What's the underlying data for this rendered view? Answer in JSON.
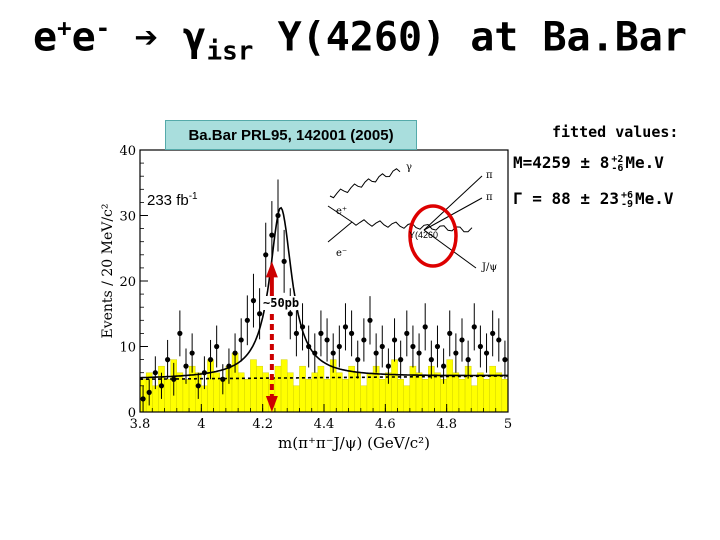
{
  "slide": {
    "title_prefix": "e",
    "title_sup1": "+",
    "title_e2": "e",
    "title_sup2": "-",
    "title_arrow": "➔",
    "title_gamma": "γ",
    "title_isr": "isr",
    "title_rest": "Y(4260) at Ba.Bar",
    "reference": "Ba.Bar PRL95, 142001 (2005)",
    "fit_header": "fitted values:",
    "mass_text": "M=4259 ± 8",
    "mass_sup": "+2",
    "mass_sub": "-6",
    "mass_unit": "Me.V",
    "width_text": "Γ = 88 ± 23",
    "width_sup": "+6",
    "width_sub": "-9",
    "width_unit": "Me.V",
    "luminosity": "233 fb",
    "luminosity_sup": "-1",
    "xsec_label": "~50pb"
  },
  "diagram": {
    "gamma": "γ",
    "pi1": "π",
    "pi2": "π",
    "eplus": "e⁺",
    "eminus": "e⁻",
    "y_label": "Y(4260",
    "jpsi": "J/ψ"
  },
  "colors": {
    "fill": "#ffff00",
    "box": "#a9dedd",
    "arrow": "#cc0000",
    "circle": "#dd0000"
  },
  "chart_data": {
    "type": "bar",
    "xlabel": "m(π⁺π⁻J/ψ) (GeV/c²)",
    "ylabel": "Events / 20 MeV/c²",
    "xlim": [
      3.8,
      5.0
    ],
    "ylim": [
      0,
      40
    ],
    "x_ticks": [
      3.8,
      4,
      4.2,
      4.4,
      4.6,
      4.8,
      5
    ],
    "x_tick_labels": [
      "3.8",
      "4",
      "4.2",
      "4.4",
      "4.6",
      "4.8",
      "5"
    ],
    "y_ticks": [
      0,
      10,
      20,
      30,
      40
    ],
    "y_tick_labels": [
      "0",
      "10",
      "20",
      "30",
      "40"
    ],
    "sideband_bins": {
      "x": [
        3.8,
        3.82,
        3.84,
        3.86,
        3.88,
        3.9,
        3.92,
        3.94,
        3.96,
        3.98,
        4.0,
        4.02,
        4.04,
        4.06,
        4.08,
        4.1,
        4.12,
        4.14,
        4.16,
        4.18,
        4.2,
        4.22,
        4.24,
        4.26,
        4.28,
        4.3,
        4.32,
        4.34,
        4.36,
        4.38,
        4.4,
        4.42,
        4.44,
        4.46,
        4.48,
        4.5,
        4.52,
        4.54,
        4.56,
        4.58,
        4.6,
        4.62,
        4.64,
        4.66,
        4.68,
        4.7,
        4.72,
        4.74,
        4.76,
        4.78,
        4.8,
        4.82,
        4.84,
        4.86,
        4.88,
        4.9,
        4.92,
        4.94,
        4.96,
        4.98
      ],
      "values": [
        5,
        6,
        4,
        7,
        5,
        8,
        6,
        5,
        7,
        6,
        4,
        8,
        6,
        5,
        7,
        9,
        6,
        5,
        8,
        7,
        6,
        5,
        7,
        8,
        6,
        4,
        7,
        5,
        6,
        7,
        5,
        8,
        6,
        5,
        7,
        6,
        4,
        6,
        7,
        5,
        6,
        8,
        5,
        4,
        7,
        6,
        5,
        7,
        6,
        5,
        8,
        6,
        5,
        7,
        4,
        6,
        5,
        7,
        6,
        5
      ]
    },
    "series": [
      {
        "name": "data",
        "x": [
          3.81,
          3.83,
          3.85,
          3.87,
          3.89,
          3.91,
          3.93,
          3.95,
          3.97,
          3.99,
          4.01,
          4.03,
          4.05,
          4.07,
          4.09,
          4.11,
          4.13,
          4.15,
          4.17,
          4.19,
          4.21,
          4.23,
          4.25,
          4.27,
          4.29,
          4.31,
          4.33,
          4.35,
          4.37,
          4.39,
          4.41,
          4.43,
          4.45,
          4.47,
          4.49,
          4.51,
          4.53,
          4.55,
          4.57,
          4.59,
          4.61,
          4.63,
          4.65,
          4.67,
          4.69,
          4.71,
          4.73,
          4.75,
          4.77,
          4.79,
          4.81,
          4.83,
          4.85,
          4.87,
          4.89,
          4.91,
          4.93,
          4.95,
          4.97,
          4.99
        ],
        "y": [
          2,
          3,
          6,
          4,
          8,
          5,
          12,
          7,
          9,
          4,
          6,
          8,
          10,
          5,
          7,
          9,
          11,
          14,
          17,
          15,
          24,
          27,
          30,
          23,
          15,
          12,
          13,
          10,
          9,
          12,
          11,
          9,
          10,
          13,
          12,
          8,
          11,
          14,
          9,
          10,
          7,
          11,
          8,
          12,
          10,
          9,
          13,
          8,
          10,
          7,
          12,
          9,
          11,
          8,
          13,
          10,
          9,
          12,
          11,
          8
        ],
        "err": [
          2,
          2,
          2.5,
          2,
          3,
          2.5,
          3.5,
          2.7,
          3,
          2,
          2.5,
          3,
          3.2,
          2.3,
          2.7,
          3,
          3.3,
          3.8,
          4.1,
          3.9,
          4.9,
          5.2,
          5.5,
          4.8,
          3.9,
          3.5,
          3.6,
          3.2,
          3,
          3.5,
          3.3,
          3,
          3.2,
          3.6,
          3.5,
          2.9,
          3.3,
          3.7,
          3,
          3.2,
          2.7,
          3.3,
          2.9,
          3.5,
          3.2,
          3,
          3.6,
          2.9,
          3.2,
          2.7,
          3.5,
          3,
          3.3,
          2.9,
          3.6,
          3.2,
          3,
          3.5,
          3.3,
          2.9
        ]
      }
    ],
    "fit": {
      "name": "fit",
      "mass": 4.259,
      "width": 0.088,
      "peak": 26
    },
    "background": {
      "name": "background",
      "from": [
        3.8,
        5.0
      ],
      "to": [
        9.5,
        5.5
      ]
    },
    "arrow": {
      "x": 4.23,
      "from_y": 23,
      "to_y": 0
    }
  }
}
